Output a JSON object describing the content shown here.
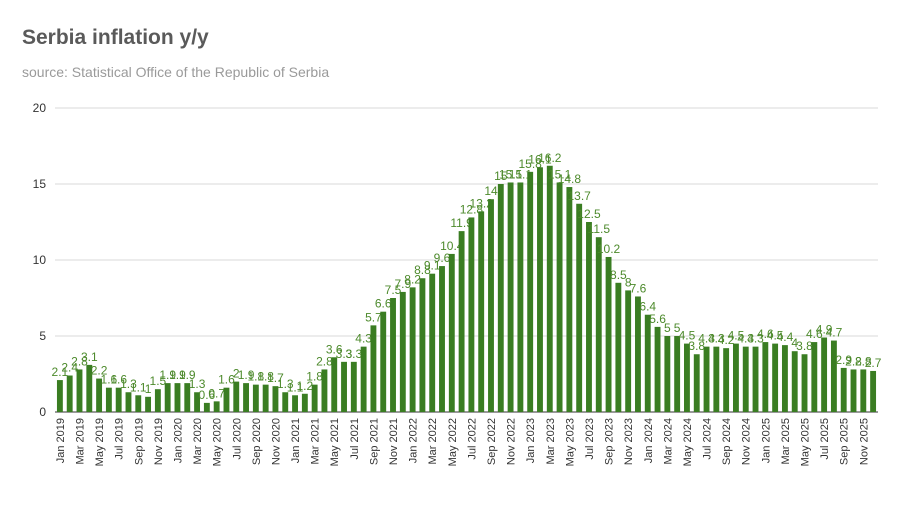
{
  "chart_data": {
    "type": "bar",
    "title": "Serbia inflation y/y",
    "subtitle": "source: Statistical Office of the Republic of Serbia",
    "xlabel": "",
    "ylabel": "",
    "ylim": [
      0,
      20
    ],
    "yticks": [
      0,
      5,
      10,
      15,
      20
    ],
    "grid": true,
    "bar_color": "#3a7d22",
    "label_color": "#4d8a2c",
    "categories": [
      "Jan 2019",
      "Feb 2019",
      "Mar 2019",
      "Apr 2019",
      "May 2019",
      "Jun 2019",
      "Jul 2019",
      "Aug 2019",
      "Sep 2019",
      "Oct 2019",
      "Nov 2019",
      "Dec 2019",
      "Jan 2020",
      "Feb 2020",
      "Mar 2020",
      "Apr 2020",
      "May 2020",
      "Jun 2020",
      "Jul 2020",
      "Aug 2020",
      "Sep 2020",
      "Oct 2020",
      "Nov 2020",
      "Dec 2020",
      "Jan 2021",
      "Feb 2021",
      "Mar 2021",
      "Apr 2021",
      "May 2021",
      "Jun 2021",
      "Jul 2021",
      "Aug 2021",
      "Sep 2021",
      "Oct 2021",
      "Nov 2021",
      "Dec 2021",
      "Jan 2022",
      "Feb 2022",
      "Mar 2022",
      "Apr 2022",
      "May 2022",
      "Jun 2022",
      "Jul 2022",
      "Aug 2022",
      "Sep 2022",
      "Oct 2022",
      "Nov 2022",
      "Dec 2022",
      "Jan 2023",
      "Feb 2023",
      "Mar 2023",
      "Apr 2023",
      "May 2023",
      "Jun 2023",
      "Jul 2023",
      "Aug 2023",
      "Sep 2023",
      "Oct 2023",
      "Nov 2023",
      "Dec 2023",
      "Jan 2024",
      "Feb 2024",
      "Mar 2024",
      "Apr 2024",
      "May 2024",
      "Jun 2024",
      "Jul 2024",
      "Aug 2024",
      "Sep 2024",
      "Oct 2024",
      "Nov 2024",
      "Dec 2024",
      "Jan 2025",
      "Feb 2025",
      "Mar 2025",
      "Apr 2025",
      "May 2025",
      "Jun 2025",
      "Jul 2025",
      "Aug 2025",
      "Sep 2025",
      "Oct 2025",
      "Nov 2025",
      "Dec 2025"
    ],
    "x_tick_labels": [
      "Jan 2019",
      "Mar 2019",
      "May 2019",
      "Jul 2019",
      "Sep 2019",
      "Nov 2019",
      "Jan 2020",
      "Mar 2020",
      "May 2020",
      "Jul 2020",
      "Sep 2020",
      "Nov 2020",
      "Jan 2021",
      "Mar 2021",
      "May 2021",
      "Jul 2021",
      "Sep 2021",
      "Nov 2021",
      "Jan 2022",
      "Mar 2022",
      "May 2022",
      "Jul 2022",
      "Sep 2022",
      "Nov 2022",
      "Jan 2023",
      "Mar 2023",
      "May 2023",
      "Jul 2023",
      "Sep 2023",
      "Nov 2023",
      "Jan 2024",
      "Mar 2024",
      "May 2024",
      "Jul 2024",
      "Sep 2024",
      "Nov 2024",
      "Jan 2025",
      "Mar 2025",
      "May 2025",
      "Jul 2025",
      "Sep 2025",
      "Nov 2025"
    ],
    "values": [
      2.1,
      2.4,
      2.8,
      3.1,
      2.2,
      1.6,
      1.6,
      1.3,
      1.1,
      1.0,
      1.5,
      1.9,
      1.9,
      1.9,
      1.3,
      0.6,
      0.7,
      1.6,
      2.0,
      1.9,
      1.8,
      1.8,
      1.7,
      1.3,
      1.1,
      1.2,
      1.8,
      2.8,
      3.6,
      3.3,
      3.3,
      4.3,
      5.7,
      6.6,
      7.5,
      7.9,
      8.2,
      8.8,
      9.1,
      9.6,
      10.4,
      11.9,
      12.8,
      13.2,
      14.0,
      15.0,
      15.1,
      15.1,
      15.8,
      16.1,
      16.2,
      15.1,
      14.8,
      13.7,
      12.5,
      11.5,
      10.2,
      8.5,
      8.0,
      7.6,
      6.4,
      5.6,
      5.0,
      5.0,
      4.5,
      3.8,
      4.3,
      4.3,
      4.2,
      4.5,
      4.3,
      4.3,
      4.6,
      4.5,
      4.4,
      4.0,
      3.8,
      4.6,
      4.9,
      4.7,
      2.9,
      2.8,
      2.8,
      2.7
    ],
    "data_labels": [
      "2.1",
      "2.4",
      "2.8",
      "3.1",
      "2.2",
      "1.6",
      "1.6",
      "1.3",
      "1.1",
      "1",
      "1.5",
      "1.9",
      "1.9",
      "1.9",
      "1.3",
      "0.6",
      "0.7",
      "1.6",
      "2",
      "1.9",
      "1.8",
      "1.8",
      "1.7",
      "1.3",
      "1.1",
      "1.2",
      "1.8",
      "2.8",
      "3.6",
      "3.3",
      "3.3",
      "4.3",
      "5.7",
      "6.6",
      "7.5",
      "7.9",
      "8.2",
      "8.8",
      "9.1",
      "9.6",
      "10.4",
      "11.9",
      "12.8",
      "13.2",
      "14",
      "15",
      "15.1",
      "15.1",
      "15.8",
      "16.1",
      "16.2",
      "15.1",
      "14.8",
      "13.7",
      "12.5",
      "11.5",
      "10.2",
      "8.5",
      "8",
      "7.6",
      "6.4",
      "5.6",
      "5",
      "5",
      "4.5",
      "3.8",
      "4.3",
      "4.3",
      "4.2",
      "4.5",
      "4.3",
      "4.3",
      "4.6",
      "4.5",
      "4.4",
      "4",
      "3.8",
      "4.6",
      "4.9",
      "4.7",
      "2.9",
      "2.8",
      "2.8",
      "2.7"
    ]
  }
}
